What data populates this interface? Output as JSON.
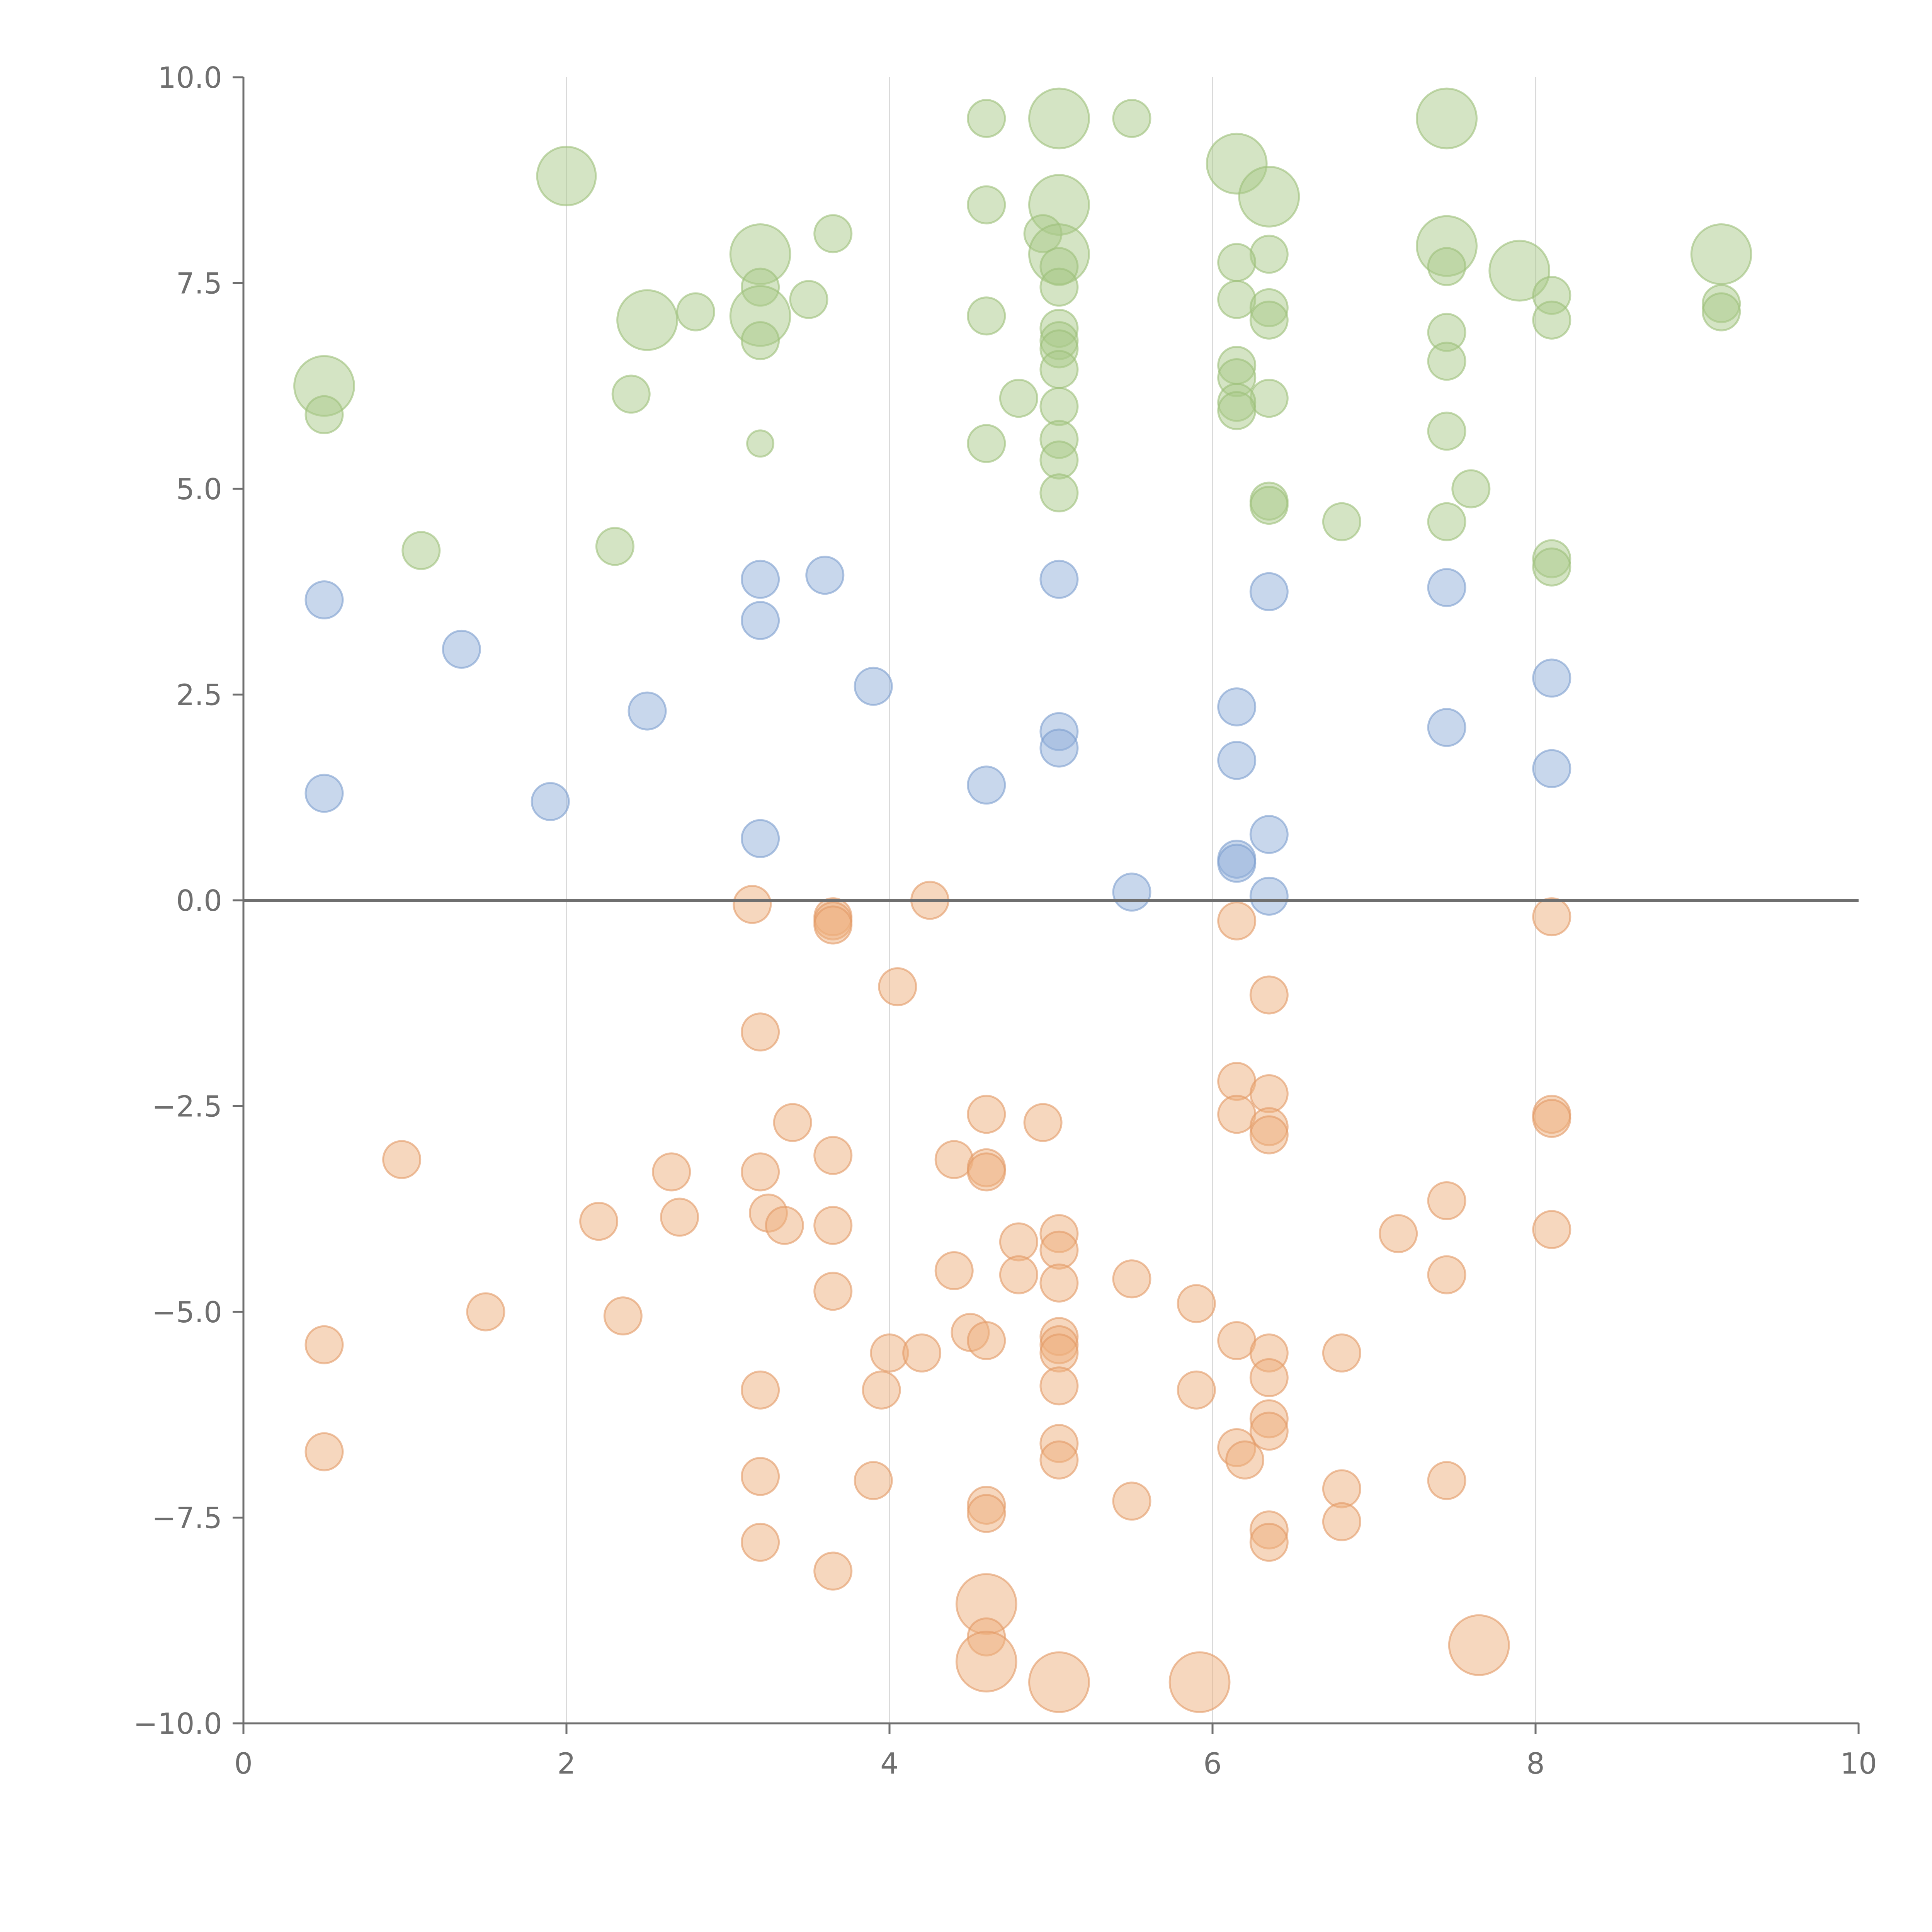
{
  "chart_data": {
    "type": "scatter",
    "title": "",
    "xlabel": "",
    "ylabel": "",
    "xlim": [
      0,
      10
    ],
    "ylim": [
      -10,
      10
    ],
    "x_ticks": [
      0,
      2,
      4,
      6,
      8,
      10
    ],
    "y_ticks": [
      -10,
      -7.5,
      -5,
      -2.5,
      0,
      2.5,
      5,
      7.5,
      10
    ],
    "x_tick_labels": [
      "0",
      "2",
      "4",
      "6",
      "8",
      "10"
    ],
    "y_tick_labels": [
      "−10.0",
      "−7.5",
      "−5.0",
      "−2.5",
      "0.0",
      "2.5",
      "5.0",
      "7.5",
      "10.0"
    ],
    "grid": "vertical",
    "vertical_gridlines_at": [
      2,
      4,
      6,
      8
    ],
    "reference_line_y": 0,
    "legend": "none",
    "size_unit": "relative",
    "series": [
      {
        "color": "#aac98a",
        "stroke": "#9cbf7a",
        "points": [
          {
            "x": 4.6,
            "y": 9.5,
            "s": 1
          },
          {
            "x": 5.5,
            "y": 9.5,
            "s": 1
          },
          {
            "x": 5.05,
            "y": 9.5,
            "s": 2.6
          },
          {
            "x": 7.45,
            "y": 9.5,
            "s": 2.6
          },
          {
            "x": 2.0,
            "y": 8.8,
            "s": 2.5
          },
          {
            "x": 6.15,
            "y": 8.95,
            "s": 2.6
          },
          {
            "x": 6.35,
            "y": 8.55,
            "s": 2.6
          },
          {
            "x": 4.6,
            "y": 8.45,
            "s": 1
          },
          {
            "x": 5.05,
            "y": 8.45,
            "s": 2.6
          },
          {
            "x": 3.65,
            "y": 8.1,
            "s": 1
          },
          {
            "x": 4.95,
            "y": 8.1,
            "s": 1
          },
          {
            "x": 5.05,
            "y": 7.85,
            "s": 2.6
          },
          {
            "x": 3.2,
            "y": 7.85,
            "s": 2.6
          },
          {
            "x": 7.45,
            "y": 7.95,
            "s": 2.6
          },
          {
            "x": 9.15,
            "y": 7.85,
            "s": 2.6
          },
          {
            "x": 7.9,
            "y": 7.65,
            "s": 2.6
          },
          {
            "x": 6.35,
            "y": 7.85,
            "s": 1
          },
          {
            "x": 6.15,
            "y": 7.75,
            "s": 1
          },
          {
            "x": 7.45,
            "y": 7.7,
            "s": 1
          },
          {
            "x": 5.05,
            "y": 7.7,
            "s": 1
          },
          {
            "x": 5.05,
            "y": 7.45,
            "s": 1
          },
          {
            "x": 3.2,
            "y": 7.45,
            "s": 1
          },
          {
            "x": 8.1,
            "y": 7.35,
            "s": 1
          },
          {
            "x": 3.5,
            "y": 7.3,
            "s": 1
          },
          {
            "x": 6.15,
            "y": 7.3,
            "s": 1
          },
          {
            "x": 9.15,
            "y": 7.25,
            "s": 1
          },
          {
            "x": 6.35,
            "y": 7.2,
            "s": 1
          },
          {
            "x": 9.15,
            "y": 7.15,
            "s": 1
          },
          {
            "x": 2.8,
            "y": 7.15,
            "s": 1
          },
          {
            "x": 4.6,
            "y": 7.1,
            "s": 1
          },
          {
            "x": 3.2,
            "y": 7.1,
            "s": 2.6
          },
          {
            "x": 2.5,
            "y": 7.05,
            "s": 2.6
          },
          {
            "x": 8.1,
            "y": 7.05,
            "s": 1
          },
          {
            "x": 6.35,
            "y": 7.05,
            "s": 1
          },
          {
            "x": 5.05,
            "y": 6.95,
            "s": 1
          },
          {
            "x": 7.45,
            "y": 6.9,
            "s": 1
          },
          {
            "x": 3.2,
            "y": 6.8,
            "s": 1
          },
          {
            "x": 5.05,
            "y": 6.8,
            "s": 1
          },
          {
            "x": 5.05,
            "y": 6.7,
            "s": 1
          },
          {
            "x": 7.45,
            "y": 6.55,
            "s": 1
          },
          {
            "x": 6.15,
            "y": 6.5,
            "s": 1
          },
          {
            "x": 5.05,
            "y": 6.45,
            "s": 1
          },
          {
            "x": 6.15,
            "y": 6.35,
            "s": 1
          },
          {
            "x": 0.5,
            "y": 6.25,
            "s": 2.6
          },
          {
            "x": 2.4,
            "y": 6.15,
            "s": 1
          },
          {
            "x": 4.8,
            "y": 6.1,
            "s": 1
          },
          {
            "x": 6.35,
            "y": 6.1,
            "s": 1
          },
          {
            "x": 6.15,
            "y": 6.05,
            "s": 1
          },
          {
            "x": 5.05,
            "y": 6.0,
            "s": 1
          },
          {
            "x": 6.15,
            "y": 5.95,
            "s": 1
          },
          {
            "x": 0.5,
            "y": 5.9,
            "s": 1
          },
          {
            "x": 7.45,
            "y": 5.7,
            "s": 1
          },
          {
            "x": 5.05,
            "y": 5.6,
            "s": 1
          },
          {
            "x": 4.6,
            "y": 5.55,
            "s": 1
          },
          {
            "x": 3.2,
            "y": 5.55,
            "s": 0.5
          },
          {
            "x": 5.05,
            "y": 5.35,
            "s": 1
          },
          {
            "x": 5.05,
            "y": 4.95,
            "s": 1
          },
          {
            "x": 7.6,
            "y": 5.0,
            "s": 1
          },
          {
            "x": 6.35,
            "y": 4.85,
            "s": 1
          },
          {
            "x": 6.35,
            "y": 4.8,
            "s": 1
          },
          {
            "x": 6.8,
            "y": 4.6,
            "s": 1
          },
          {
            "x": 7.45,
            "y": 4.6,
            "s": 1
          },
          {
            "x": 1.1,
            "y": 4.25,
            "s": 1
          },
          {
            "x": 2.3,
            "y": 4.3,
            "s": 1
          },
          {
            "x": 8.1,
            "y": 4.15,
            "s": 1
          },
          {
            "x": 8.1,
            "y": 4.05,
            "s": 1
          }
        ]
      },
      {
        "color": "#92b0d9",
        "stroke": "#7d9fce",
        "points": [
          {
            "x": 3.2,
            "y": 3.9,
            "s": 1
          },
          {
            "x": 3.6,
            "y": 3.95,
            "s": 1
          },
          {
            "x": 5.05,
            "y": 3.9,
            "s": 1
          },
          {
            "x": 6.35,
            "y": 3.75,
            "s": 1
          },
          {
            "x": 7.45,
            "y": 3.8,
            "s": 1
          },
          {
            "x": 0.5,
            "y": 3.65,
            "s": 1
          },
          {
            "x": 3.2,
            "y": 3.4,
            "s": 1
          },
          {
            "x": 1.35,
            "y": 3.05,
            "s": 1
          },
          {
            "x": 8.1,
            "y": 2.7,
            "s": 1
          },
          {
            "x": 3.9,
            "y": 2.6,
            "s": 1
          },
          {
            "x": 6.15,
            "y": 2.35,
            "s": 1
          },
          {
            "x": 2.5,
            "y": 2.3,
            "s": 1
          },
          {
            "x": 7.45,
            "y": 2.1,
            "s": 1
          },
          {
            "x": 5.05,
            "y": 2.05,
            "s": 1
          },
          {
            "x": 5.05,
            "y": 1.85,
            "s": 1
          },
          {
            "x": 6.15,
            "y": 1.7,
            "s": 1
          },
          {
            "x": 8.1,
            "y": 1.6,
            "s": 1
          },
          {
            "x": 4.6,
            "y": 1.4,
            "s": 1
          },
          {
            "x": 0.5,
            "y": 1.3,
            "s": 1
          },
          {
            "x": 1.9,
            "y": 1.2,
            "s": 1
          },
          {
            "x": 6.35,
            "y": 0.8,
            "s": 1
          },
          {
            "x": 3.2,
            "y": 0.75,
            "s": 1
          },
          {
            "x": 6.15,
            "y": 0.5,
            "s": 1
          },
          {
            "x": 6.15,
            "y": 0.45,
            "s": 1
          },
          {
            "x": 5.5,
            "y": 0.1,
            "s": 1
          },
          {
            "x": 6.35,
            "y": 0.05,
            "s": 1
          }
        ]
      },
      {
        "color": "#eeb07e",
        "stroke": "#e29a65",
        "points": [
          {
            "x": 3.15,
            "y": -0.05,
            "s": 1
          },
          {
            "x": 4.25,
            "y": 0.0,
            "s": 1
          },
          {
            "x": 3.65,
            "y": -0.2,
            "s": 1
          },
          {
            "x": 3.65,
            "y": -0.25,
            "s": 1
          },
          {
            "x": 3.65,
            "y": -0.3,
            "s": 1
          },
          {
            "x": 6.15,
            "y": -0.25,
            "s": 1
          },
          {
            "x": 8.1,
            "y": -0.2,
            "s": 1
          },
          {
            "x": 4.05,
            "y": -1.05,
            "s": 1
          },
          {
            "x": 6.35,
            "y": -1.15,
            "s": 1
          },
          {
            "x": 3.2,
            "y": -1.6,
            "s": 1
          },
          {
            "x": 6.15,
            "y": -2.2,
            "s": 1
          },
          {
            "x": 6.35,
            "y": -2.35,
            "s": 1
          },
          {
            "x": 4.6,
            "y": -2.6,
            "s": 1
          },
          {
            "x": 6.15,
            "y": -2.6,
            "s": 1
          },
          {
            "x": 8.1,
            "y": -2.6,
            "s": 1
          },
          {
            "x": 8.1,
            "y": -2.65,
            "s": 1
          },
          {
            "x": 3.4,
            "y": -2.7,
            "s": 1
          },
          {
            "x": 4.95,
            "y": -2.7,
            "s": 1
          },
          {
            "x": 6.35,
            "y": -2.75,
            "s": 1
          },
          {
            "x": 6.35,
            "y": -2.85,
            "s": 1
          },
          {
            "x": 3.65,
            "y": -3.1,
            "s": 1
          },
          {
            "x": 0.98,
            "y": -3.15,
            "s": 1
          },
          {
            "x": 4.4,
            "y": -3.15,
            "s": 1
          },
          {
            "x": 4.6,
            "y": -3.25,
            "s": 1
          },
          {
            "x": 4.6,
            "y": -3.3,
            "s": 1
          },
          {
            "x": 2.65,
            "y": -3.3,
            "s": 1
          },
          {
            "x": 3.2,
            "y": -3.3,
            "s": 1
          },
          {
            "x": 7.45,
            "y": -3.65,
            "s": 1
          },
          {
            "x": 3.25,
            "y": -3.8,
            "s": 1
          },
          {
            "x": 2.7,
            "y": -3.85,
            "s": 1
          },
          {
            "x": 2.2,
            "y": -3.9,
            "s": 1
          },
          {
            "x": 3.35,
            "y": -3.95,
            "s": 1
          },
          {
            "x": 3.65,
            "y": -3.95,
            "s": 1
          },
          {
            "x": 8.1,
            "y": -4.0,
            "s": 1
          },
          {
            "x": 5.05,
            "y": -4.05,
            "s": 1
          },
          {
            "x": 7.15,
            "y": -4.05,
            "s": 1
          },
          {
            "x": 4.8,
            "y": -4.15,
            "s": 1
          },
          {
            "x": 5.05,
            "y": -4.25,
            "s": 1
          },
          {
            "x": 4.4,
            "y": -4.5,
            "s": 1
          },
          {
            "x": 7.45,
            "y": -4.55,
            "s": 1
          },
          {
            "x": 4.8,
            "y": -4.55,
            "s": 1
          },
          {
            "x": 5.5,
            "y": -4.6,
            "s": 1
          },
          {
            "x": 5.05,
            "y": -4.65,
            "s": 1
          },
          {
            "x": 3.65,
            "y": -4.75,
            "s": 1
          },
          {
            "x": 5.9,
            "y": -4.9,
            "s": 1
          },
          {
            "x": 1.5,
            "y": -5.0,
            "s": 1
          },
          {
            "x": 2.35,
            "y": -5.05,
            "s": 1
          },
          {
            "x": 4.5,
            "y": -5.25,
            "s": 1
          },
          {
            "x": 5.05,
            "y": -5.3,
            "s": 1
          },
          {
            "x": 6.15,
            "y": -5.35,
            "s": 1
          },
          {
            "x": 5.05,
            "y": -5.4,
            "s": 1
          },
          {
            "x": 4.6,
            "y": -5.35,
            "s": 1
          },
          {
            "x": 0.5,
            "y": -5.4,
            "s": 1
          },
          {
            "x": 4.0,
            "y": -5.5,
            "s": 1
          },
          {
            "x": 5.05,
            "y": -5.5,
            "s": 1
          },
          {
            "x": 6.8,
            "y": -5.5,
            "s": 1
          },
          {
            "x": 4.2,
            "y": -5.5,
            "s": 1
          },
          {
            "x": 6.35,
            "y": -5.5,
            "s": 1
          },
          {
            "x": 6.35,
            "y": -5.8,
            "s": 1
          },
          {
            "x": 5.05,
            "y": -5.9,
            "s": 1
          },
          {
            "x": 5.9,
            "y": -5.95,
            "s": 1
          },
          {
            "x": 3.2,
            "y": -5.95,
            "s": 1
          },
          {
            "x": 3.95,
            "y": -5.95,
            "s": 1
          },
          {
            "x": 6.35,
            "y": -6.3,
            "s": 1
          },
          {
            "x": 6.35,
            "y": -6.45,
            "s": 1
          },
          {
            "x": 5.05,
            "y": -6.6,
            "s": 1
          },
          {
            "x": 6.15,
            "y": -6.65,
            "s": 1
          },
          {
            "x": 0.5,
            "y": -6.7,
            "s": 1
          },
          {
            "x": 5.05,
            "y": -6.8,
            "s": 1
          },
          {
            "x": 6.2,
            "y": -6.8,
            "s": 1
          },
          {
            "x": 3.2,
            "y": -7.0,
            "s": 1
          },
          {
            "x": 7.45,
            "y": -7.05,
            "s": 1
          },
          {
            "x": 3.9,
            "y": -7.05,
            "s": 1
          },
          {
            "x": 6.8,
            "y": -7.15,
            "s": 1
          },
          {
            "x": 5.5,
            "y": -7.3,
            "s": 1
          },
          {
            "x": 4.6,
            "y": -7.35,
            "s": 1
          },
          {
            "x": 4.6,
            "y": -7.45,
            "s": 1
          },
          {
            "x": 6.8,
            "y": -7.55,
            "s": 1
          },
          {
            "x": 6.35,
            "y": -7.65,
            "s": 1
          },
          {
            "x": 6.35,
            "y": -7.8,
            "s": 1
          },
          {
            "x": 3.2,
            "y": -7.8,
            "s": 1
          },
          {
            "x": 3.65,
            "y": -8.15,
            "s": 1
          },
          {
            "x": 4.6,
            "y": -8.55,
            "s": 2.6
          },
          {
            "x": 4.6,
            "y": -8.95,
            "s": 1
          },
          {
            "x": 7.65,
            "y": -9.05,
            "s": 2.6
          },
          {
            "x": 4.6,
            "y": -9.25,
            "s": 2.6
          },
          {
            "x": 5.05,
            "y": -9.5,
            "s": 2.6
          },
          {
            "x": 5.92,
            "y": -9.5,
            "s": 2.6
          }
        ]
      }
    ]
  }
}
